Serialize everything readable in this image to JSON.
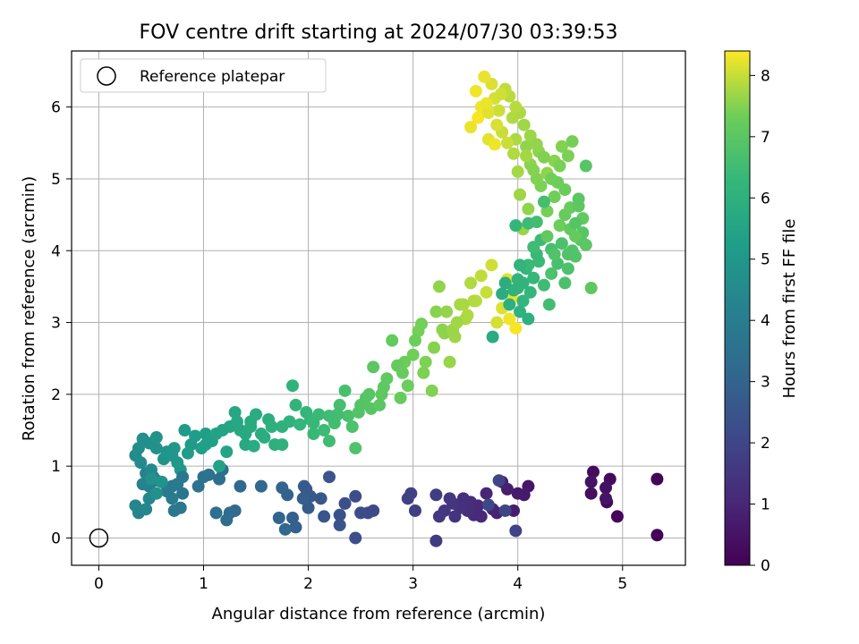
{
  "chart_data": {
    "type": "scatter",
    "title": "FOV centre drift starting at 2024/07/30 03:39:53",
    "xlabel": "Angular distance from reference (arcmin)",
    "ylabel": "Rotation from reference (arcmin)",
    "xlim": [
      -0.26,
      5.6
    ],
    "ylim": [
      -0.38,
      6.78
    ],
    "xticks": [
      "0",
      "1",
      "2",
      "3",
      "4",
      "5"
    ],
    "xtick_values": [
      0,
      1,
      2,
      3,
      4,
      5
    ],
    "yticks": [
      "0",
      "1",
      "2",
      "3",
      "4",
      "5",
      "6"
    ],
    "ytick_values": [
      0,
      1,
      2,
      3,
      4,
      5,
      6
    ],
    "grid": true,
    "legend": {
      "placement": "upper-left",
      "entries": [
        "Reference platepar"
      ]
    },
    "reference_point": {
      "x": 0,
      "y": 0
    },
    "colorbar": {
      "label": "Hours from first FF file",
      "colormap": "viridis",
      "range": [
        0,
        8.4
      ],
      "ticks": [
        "0",
        "1",
        "2",
        "3",
        "4",
        "5",
        "6",
        "7",
        "8"
      ],
      "tick_values": [
        0,
        1,
        2,
        3,
        4,
        5,
        6,
        7,
        8
      ]
    },
    "points": [
      [
        5.33,
        0.04,
        0.05
      ],
      [
        5.33,
        0.82,
        0.1
      ],
      [
        4.95,
        0.3,
        0.15
      ],
      [
        4.85,
        0.5,
        0.2
      ],
      [
        4.88,
        0.82,
        0.25
      ],
      [
        4.72,
        0.92,
        0.3
      ],
      [
        4.7,
        0.62,
        0.35
      ],
      [
        4.84,
        0.7,
        0.4
      ],
      [
        4.7,
        0.78,
        0.45
      ],
      [
        4.84,
        0.55,
        0.5
      ],
      [
        4.1,
        0.72,
        0.6
      ],
      [
        4.06,
        0.6,
        0.65
      ],
      [
        4.0,
        0.62,
        0.7
      ],
      [
        3.96,
        0.38,
        0.75
      ],
      [
        3.9,
        0.68,
        0.8
      ],
      [
        3.85,
        0.78,
        0.85
      ],
      [
        3.8,
        0.35,
        0.9
      ],
      [
        3.76,
        0.4,
        0.95
      ],
      [
        3.7,
        0.62,
        1.0
      ],
      [
        3.65,
        0.3,
        1.05
      ],
      [
        3.62,
        0.45,
        1.1
      ],
      [
        3.58,
        0.32,
        1.15
      ],
      [
        3.55,
        0.5,
        1.2
      ],
      [
        3.52,
        0.38,
        1.25
      ],
      [
        3.48,
        0.55,
        1.3
      ],
      [
        3.45,
        0.42,
        1.35
      ],
      [
        3.4,
        0.3,
        1.4
      ],
      [
        3.38,
        0.48,
        1.45
      ],
      [
        3.35,
        0.55,
        1.5
      ],
      [
        3.3,
        0.38,
        1.55
      ],
      [
        3.25,
        0.3,
        1.6
      ],
      [
        3.22,
        -0.04,
        1.65
      ],
      [
        3.22,
        0.6,
        1.7
      ],
      [
        3.02,
        0.38,
        1.75
      ],
      [
        2.95,
        0.55,
        1.8
      ],
      [
        2.98,
        0.62,
        1.85
      ],
      [
        3.98,
        0.1,
        1.9
      ],
      [
        3.82,
        0.8,
        1.95
      ],
      [
        3.88,
        0.38,
        2.0
      ],
      [
        3.72,
        0.46,
        2.05
      ],
      [
        2.62,
        0.38,
        2.1
      ],
      [
        2.57,
        0.35,
        2.15
      ],
      [
        2.5,
        0.35,
        2.2
      ],
      [
        2.45,
        0.58,
        2.25
      ],
      [
        2.45,
        0.0,
        2.3
      ],
      [
        2.35,
        0.48,
        2.35
      ],
      [
        2.3,
        0.32,
        2.4
      ],
      [
        2.3,
        0.18,
        2.45
      ],
      [
        2.2,
        0.85,
        2.5
      ],
      [
        2.15,
        0.3,
        2.55
      ],
      [
        2.12,
        0.55,
        2.6
      ],
      [
        2.02,
        0.58,
        2.65
      ],
      [
        2.0,
        0.42,
        2.7
      ],
      [
        1.96,
        0.72,
        2.75
      ],
      [
        1.95,
        0.55,
        2.8
      ],
      [
        1.85,
        0.28,
        2.85
      ],
      [
        1.88,
        0.15,
        2.9
      ],
      [
        1.8,
        0.6,
        2.95
      ],
      [
        1.75,
        0.7,
        3.0
      ],
      [
        1.72,
        0.28,
        3.05
      ],
      [
        1.78,
        0.12,
        3.1
      ],
      [
        1.55,
        0.72,
        3.15
      ],
      [
        1.35,
        0.72,
        3.2
      ],
      [
        1.3,
        0.38,
        3.25
      ],
      [
        1.25,
        0.35,
        3.3
      ],
      [
        1.22,
        0.25,
        3.35
      ],
      [
        1.18,
        0.95,
        3.4
      ],
      [
        1.15,
        0.82,
        3.45
      ],
      [
        1.12,
        0.35,
        3.5
      ],
      [
        1.05,
        0.88,
        3.55
      ],
      [
        1.0,
        0.85,
        3.6
      ],
      [
        0.95,
        0.72,
        3.65
      ],
      [
        0.8,
        0.62,
        3.7
      ],
      [
        0.78,
        0.42,
        3.75
      ],
      [
        0.72,
        0.38,
        3.8
      ],
      [
        0.7,
        0.72,
        3.85
      ],
      [
        0.65,
        0.65,
        3.9
      ],
      [
        0.6,
        0.78,
        3.95
      ],
      [
        0.55,
        0.8,
        4.0
      ],
      [
        0.52,
        0.85,
        4.05
      ],
      [
        0.48,
        0.72,
        4.1
      ],
      [
        0.45,
        0.9,
        4.15
      ],
      [
        0.42,
        0.75,
        4.2
      ],
      [
        0.38,
        0.35,
        4.25
      ],
      [
        0.35,
        0.45,
        4.3
      ],
      [
        0.45,
        0.4,
        4.35
      ],
      [
        0.48,
        0.55,
        4.4
      ],
      [
        0.5,
        0.95,
        4.45
      ],
      [
        0.4,
        1.05,
        4.5
      ],
      [
        0.35,
        1.15,
        4.55
      ],
      [
        0.38,
        1.25,
        4.6
      ],
      [
        0.42,
        1.38,
        4.65
      ],
      [
        0.48,
        1.32,
        4.7
      ],
      [
        0.55,
        1.25,
        4.75
      ],
      [
        0.55,
        1.4,
        4.8
      ],
      [
        0.62,
        1.1,
        4.85
      ],
      [
        0.65,
        1.2,
        4.9
      ],
      [
        0.7,
        1.15,
        4.95
      ],
      [
        0.75,
        1.05,
        5.0
      ],
      [
        0.78,
        0.95,
        5.05
      ],
      [
        0.82,
        1.5,
        5.1
      ],
      [
        0.88,
        1.3,
        5.15
      ],
      [
        0.92,
        1.42,
        5.2
      ],
      [
        0.98,
        1.25,
        5.25
      ],
      [
        1.02,
        1.45,
        5.3
      ],
      [
        1.08,
        1.35,
        5.35
      ],
      [
        1.12,
        1.45,
        5.4
      ],
      [
        1.15,
        1.0,
        5.45
      ],
      [
        1.22,
        1.2,
        5.5
      ],
      [
        1.25,
        1.55,
        5.55
      ],
      [
        1.3,
        1.75,
        5.6
      ],
      [
        1.35,
        1.5,
        5.65
      ],
      [
        1.4,
        1.3,
        5.7
      ],
      [
        1.45,
        1.62,
        5.75
      ],
      [
        1.5,
        1.72,
        5.8
      ],
      [
        1.55,
        1.45,
        5.85
      ],
      [
        1.62,
        1.65,
        5.9
      ],
      [
        1.68,
        1.3,
        5.95
      ],
      [
        1.75,
        1.55,
        6.0
      ],
      [
        1.82,
        1.62,
        6.05
      ],
      [
        1.85,
        2.12,
        6.1
      ],
      [
        1.88,
        1.85,
        6.15
      ],
      [
        1.92,
        1.58,
        6.2
      ],
      [
        1.98,
        1.75,
        6.25
      ],
      [
        2.02,
        1.65,
        6.3
      ],
      [
        2.05,
        1.45,
        6.35
      ],
      [
        2.1,
        1.72,
        6.4
      ],
      [
        2.15,
        1.5,
        6.45
      ],
      [
        2.2,
        1.35,
        6.5
      ],
      [
        2.25,
        1.6,
        6.55
      ],
      [
        2.3,
        1.85,
        6.6
      ],
      [
        2.35,
        2.05,
        6.65
      ],
      [
        2.38,
        1.7,
        6.7
      ],
      [
        2.42,
        1.55,
        6.75
      ],
      [
        2.45,
        1.25,
        6.8
      ],
      [
        2.48,
        1.75,
        6.85
      ],
      [
        2.55,
        1.95,
        6.9
      ],
      [
        2.6,
        1.8,
        6.95
      ],
      [
        2.62,
        2.38,
        7.0
      ],
      [
        2.7,
        2.0,
        7.05
      ],
      [
        2.75,
        2.22,
        7.1
      ],
      [
        2.8,
        2.75,
        7.15
      ],
      [
        2.88,
        1.95,
        7.2
      ],
      [
        2.92,
        2.45,
        7.25
      ],
      [
        2.95,
        2.12,
        7.3
      ],
      [
        3.0,
        2.55,
        7.35
      ],
      [
        3.05,
        2.88,
        7.4
      ],
      [
        3.1,
        2.3,
        7.45
      ],
      [
        3.18,
        2.05,
        7.5
      ],
      [
        3.22,
        3.15,
        7.55
      ],
      [
        3.3,
        2.85,
        7.6
      ],
      [
        3.35,
        2.45,
        7.65
      ],
      [
        3.4,
        2.8,
        7.7
      ],
      [
        3.45,
        3.25,
        7.75
      ],
      [
        3.5,
        3.05,
        7.8
      ],
      [
        3.55,
        3.55,
        7.85
      ],
      [
        3.6,
        3.3,
        7.9
      ],
      [
        3.65,
        3.65,
        7.95
      ],
      [
        3.7,
        3.42,
        8.0
      ],
      [
        3.75,
        3.8,
        8.05
      ],
      [
        3.8,
        3.0,
        8.1
      ],
      [
        3.85,
        3.2,
        8.15
      ],
      [
        3.9,
        3.6,
        8.2
      ],
      [
        3.95,
        3.35,
        8.25
      ],
      [
        3.92,
        3.05,
        8.3
      ],
      [
        3.98,
        2.92,
        8.35
      ],
      [
        1.98,
        0.68,
        2.68
      ],
      [
        2.28,
        1.72,
        6.58
      ],
      [
        3.02,
        2.75,
        7.3
      ],
      [
        3.08,
        2.98,
        7.38
      ],
      [
        4.0,
        3.48,
        6.1
      ],
      [
        4.02,
        3.15,
        6.05
      ],
      [
        4.05,
        3.55,
        6.15
      ],
      [
        4.08,
        3.75,
        6.2
      ],
      [
        4.1,
        3.05,
        6.0
      ],
      [
        4.12,
        3.42,
        6.25
      ],
      [
        4.15,
        3.62,
        6.3
      ],
      [
        4.18,
        3.95,
        6.35
      ],
      [
        4.2,
        3.85,
        6.4
      ],
      [
        4.22,
        4.15,
        6.45
      ],
      [
        4.25,
        3.52,
        6.5
      ],
      [
        4.3,
        3.25,
        6.55
      ],
      [
        4.32,
        4.02,
        6.6
      ],
      [
        4.38,
        3.82,
        6.65
      ],
      [
        4.45,
        3.55,
        6.7
      ],
      [
        4.48,
        3.75,
        6.75
      ],
      [
        4.52,
        4.0,
        6.8
      ],
      [
        4.55,
        3.92,
        6.85
      ],
      [
        4.6,
        4.15,
        6.9
      ],
      [
        4.62,
        4.25,
        6.95
      ],
      [
        4.65,
        4.08,
        7.0
      ],
      [
        4.7,
        3.48,
        7.05
      ],
      [
        4.62,
        4.45,
        7.1
      ],
      [
        4.55,
        4.2,
        7.15
      ],
      [
        4.5,
        4.6,
        7.2
      ],
      [
        4.45,
        4.85,
        7.25
      ],
      [
        4.4,
        4.35,
        7.3
      ],
      [
        4.35,
        4.75,
        7.35
      ],
      [
        4.28,
        4.55,
        7.4
      ],
      [
        4.22,
        4.9,
        7.45
      ],
      [
        4.18,
        5.0,
        7.5
      ],
      [
        4.12,
        5.2,
        7.55
      ],
      [
        4.08,
        5.45,
        7.6
      ],
      [
        4.05,
        4.3,
        7.65
      ],
      [
        4.02,
        4.78,
        7.7
      ],
      [
        4.0,
        5.1,
        7.75
      ],
      [
        3.98,
        5.55,
        7.8
      ],
      [
        3.95,
        5.85,
        7.85
      ],
      [
        3.92,
        6.15,
        7.9
      ],
      [
        3.88,
        6.25,
        7.95
      ],
      [
        3.85,
        5.65,
        8.0
      ],
      [
        3.82,
        5.95,
        8.05
      ],
      [
        3.78,
        6.12,
        8.1
      ],
      [
        3.75,
        6.32,
        8.15
      ],
      [
        3.72,
        5.55,
        8.2
      ],
      [
        3.68,
        6.42,
        8.25
      ],
      [
        3.65,
        6.0,
        8.3
      ],
      [
        3.62,
        5.85,
        8.35
      ],
      [
        3.6,
        6.22,
        8.3
      ],
      [
        3.55,
        5.72,
        8.25
      ],
      [
        4.28,
        5.08,
        7.6
      ],
      [
        4.35,
        5.25,
        7.55
      ],
      [
        4.42,
        5.45,
        7.5
      ],
      [
        4.48,
        5.32,
        7.45
      ],
      [
        4.52,
        5.52,
        7.4
      ],
      [
        4.4,
        5.18,
        7.42
      ],
      [
        4.2,
        5.38,
        7.58
      ],
      [
        4.12,
        5.6,
        7.68
      ],
      [
        4.06,
        5.75,
        7.72
      ],
      [
        4.02,
        5.92,
        7.8
      ],
      [
        3.9,
        5.5,
        8.02
      ],
      [
        3.8,
        5.75,
        8.12
      ],
      [
        3.72,
        5.92,
        8.18
      ],
      [
        3.84,
        6.18,
        8.08
      ],
      [
        3.98,
        6.0,
        7.88
      ],
      [
        3.78,
        5.48,
        8.3
      ],
      [
        3.7,
        6.05,
        8.26
      ],
      [
        3.96,
        5.35,
        7.84
      ],
      [
        4.08,
        5.32,
        7.74
      ],
      [
        4.18,
        5.48,
        7.62
      ],
      [
        4.65,
        5.18,
        6.95
      ],
      [
        4.58,
        4.62,
        7.05
      ],
      [
        4.5,
        4.3,
        7.15
      ],
      [
        4.45,
        4.5,
        7.22
      ],
      [
        4.38,
        4.95,
        7.3
      ],
      [
        4.32,
        5.0,
        7.36
      ],
      [
        4.25,
        5.3,
        7.48
      ],
      [
        4.15,
        5.12,
        7.52
      ],
      [
        4.1,
        4.58,
        7.6
      ],
      [
        4.28,
        4.2,
        7.1
      ],
      [
        4.35,
        3.95,
        6.8
      ],
      [
        4.32,
        3.68,
        6.75
      ],
      [
        4.15,
        4.05,
        6.5
      ],
      [
        4.1,
        3.8,
        6.4
      ],
      [
        4.05,
        3.3,
        6.2
      ],
      [
        4.0,
        3.6,
        6.15
      ],
      [
        3.96,
        3.45,
        6.05
      ],
      [
        3.92,
        3.25,
        5.95
      ],
      [
        3.88,
        3.55,
        5.9
      ],
      [
        3.85,
        3.4,
        5.85
      ],
      [
        4.02,
        3.8,
        6.18
      ],
      [
        4.1,
        4.38,
        6.45
      ],
      [
        4.18,
        4.4,
        6.55
      ],
      [
        4.25,
        4.68,
        6.62
      ],
      [
        4.42,
        4.1,
        6.72
      ],
      [
        4.48,
        3.95,
        6.82
      ],
      [
        4.55,
        4.38,
        6.88
      ],
      [
        4.58,
        4.72,
        6.98
      ],
      [
        3.98,
        4.35,
        6.25
      ],
      [
        3.76,
        2.8,
        5.8
      ],
      [
        2.2,
        1.7,
        6.48
      ],
      [
        2.05,
        1.6,
        6.35
      ],
      [
        1.65,
        1.55,
        5.95
      ],
      [
        1.48,
        1.28,
        5.78
      ],
      [
        1.4,
        1.45,
        5.7
      ],
      [
        1.32,
        1.62,
        5.62
      ],
      [
        1.18,
        1.5,
        5.48
      ],
      [
        1.02,
        1.3,
        5.32
      ],
      [
        0.85,
        1.18,
        5.16
      ],
      [
        0.72,
        1.25,
        5.0
      ],
      [
        0.6,
        0.78,
        4.82
      ],
      [
        0.55,
        0.62,
        4.78
      ],
      [
        0.5,
        0.82,
        4.72
      ],
      [
        0.7,
        0.55,
        3.9
      ],
      [
        0.8,
        0.85,
        3.78
      ],
      [
        0.75,
        0.75,
        3.82
      ],
      [
        1.45,
        1.55,
        5.76
      ],
      [
        1.58,
        1.4,
        5.88
      ],
      [
        1.75,
        1.3,
        6.02
      ],
      [
        2.5,
        1.85,
        6.86
      ],
      [
        2.58,
        2.0,
        6.92
      ],
      [
        2.68,
        1.85,
        7.02
      ],
      [
        2.72,
        2.1,
        7.06
      ],
      [
        2.85,
        2.4,
        7.18
      ],
      [
        2.9,
        2.3,
        7.22
      ],
      [
        3.12,
        2.45,
        7.46
      ],
      [
        3.2,
        2.65,
        7.52
      ],
      [
        3.28,
        2.9,
        7.58
      ],
      [
        3.32,
        3.15,
        7.62
      ],
      [
        3.38,
        2.9,
        7.68
      ],
      [
        3.42,
        3.0,
        7.72
      ],
      [
        3.48,
        3.25,
        7.78
      ],
      [
        3.52,
        3.1,
        7.82
      ],
      [
        3.58,
        3.3,
        7.86
      ],
      [
        3.25,
        3.5,
        7.6
      ]
    ]
  }
}
